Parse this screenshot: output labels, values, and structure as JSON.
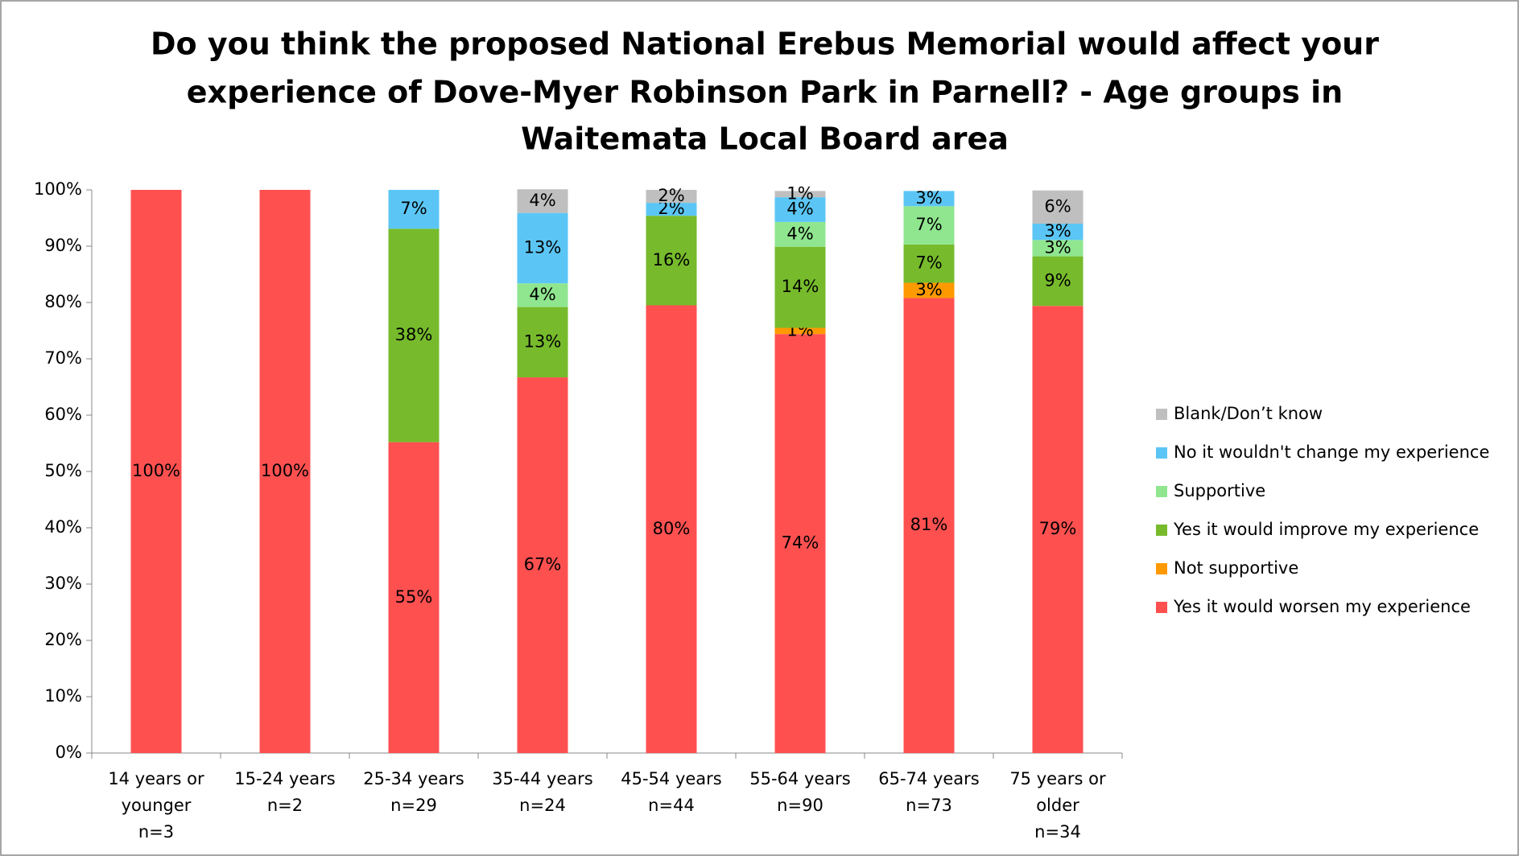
{
  "chart_data": {
    "type": "stacked_bar",
    "title": [
      "Do you think the proposed National Erebus Memorial would affect your",
      "experience of Dove-Myer Robinson Park in Parnell?  - Age groups in",
      "Waitemata Local Board area"
    ],
    "categories": [
      [
        "14 years or",
        "younger",
        "n=3"
      ],
      [
        "15-24 years",
        "n=2"
      ],
      [
        "25-34 years",
        "n=29"
      ],
      [
        "35-44 years",
        "n=24"
      ],
      [
        "45-54 years",
        "n=44"
      ],
      [
        "55-64 years",
        "n=90"
      ],
      [
        "65-74 years",
        "n=73"
      ],
      [
        "75 years or",
        "older",
        "n=34"
      ]
    ],
    "series": [
      {
        "name": "Yes it would worsen my experience",
        "color": "#ff5050",
        "values": [
          100,
          100,
          55.2,
          66.7,
          79.5,
          74.4,
          80.8,
          79.4
        ],
        "value_labels": [
          "100%",
          "100%",
          "55%",
          "67%",
          "80%",
          "74%",
          "81%",
          "79%"
        ]
      },
      {
        "name": "Not supportive",
        "color": "#ff9900",
        "values": [
          null,
          null,
          null,
          null,
          null,
          1.1,
          2.7,
          null
        ],
        "value_labels": [
          null,
          null,
          null,
          null,
          null,
          "1%",
          "3%",
          null
        ]
      },
      {
        "name": "Yes it would improve my experience",
        "color": "#77bb2c",
        "values": [
          null,
          null,
          37.9,
          12.5,
          15.9,
          14.4,
          6.8,
          8.8
        ],
        "value_labels": [
          null,
          null,
          "38%",
          "13%",
          "16%",
          "14%",
          "7%",
          "9%"
        ]
      },
      {
        "name": "Supportive",
        "color": "#8fe68f",
        "values": [
          null,
          null,
          null,
          4.2,
          null,
          4.4,
          6.8,
          2.9
        ],
        "value_labels": [
          null,
          null,
          null,
          "4%",
          null,
          "4%",
          "7%",
          "3%"
        ]
      },
      {
        "name": "No it wouldn't change my experience",
        "color": "#5bc6f5",
        "values": [
          null,
          null,
          6.9,
          12.5,
          2.3,
          4.4,
          2.7,
          2.9
        ],
        "value_labels": [
          null,
          null,
          "7%",
          "13%",
          "2%",
          "4%",
          "3%",
          "3%"
        ]
      },
      {
        "name": "Blank/Don’t know",
        "color": "#bfbfbf",
        "values": [
          null,
          null,
          null,
          4.2,
          2.3,
          1.1,
          null,
          5.9
        ],
        "value_labels": [
          null,
          null,
          null,
          "4%",
          "2%",
          "1%",
          null,
          "6%"
        ]
      }
    ],
    "ylim": [
      0,
      100
    ],
    "yticks": [
      {
        "value": 0,
        "label": "0%"
      },
      {
        "value": 10,
        "label": "10%"
      },
      {
        "value": 20,
        "label": "20%"
      },
      {
        "value": 30,
        "label": "30%"
      },
      {
        "value": 40,
        "label": "40%"
      },
      {
        "value": 50,
        "label": "50%"
      },
      {
        "value": 60,
        "label": "60%"
      },
      {
        "value": 70,
        "label": "70%"
      },
      {
        "value": 80,
        "label": "80%"
      },
      {
        "value": 90,
        "label": "90%"
      },
      {
        "value": 100,
        "label": "100%"
      }
    ],
    "legend": "right"
  }
}
